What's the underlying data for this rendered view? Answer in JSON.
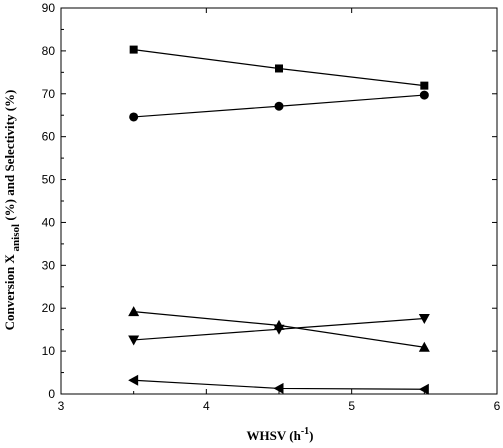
{
  "chart_data": {
    "type": "line",
    "xlabel": {
      "main": "WHSV (h",
      "sup": "-1",
      "tail": ")"
    },
    "ylabel": {
      "main": "Conversion X",
      "sub": "anisol",
      "tail": "(%)  and Selectivity (%)"
    },
    "xlim": [
      3,
      6
    ],
    "ylim": [
      0,
      90
    ],
    "xticks": [
      3,
      4,
      5,
      6
    ],
    "yticks": [
      0,
      10,
      20,
      30,
      40,
      50,
      60,
      70,
      80,
      90
    ],
    "grid": false,
    "legend": "none",
    "x": [
      3.5,
      4.5,
      5.5
    ],
    "series": [
      {
        "marker": "square",
        "values": [
          80.3,
          75.9,
          71.9
        ]
      },
      {
        "marker": "circle",
        "values": [
          64.6,
          67.1,
          69.7
        ]
      },
      {
        "marker": "triangle-up",
        "values": [
          19.2,
          16.0,
          10.9
        ]
      },
      {
        "marker": "triangle-down",
        "values": [
          12.6,
          15.1,
          17.6
        ]
      },
      {
        "marker": "triangle-left",
        "values": [
          3.2,
          1.3,
          1.1
        ]
      }
    ],
    "colors": {
      "line": "#000000",
      "marker": "#000000",
      "background": "#ffffff"
    }
  }
}
